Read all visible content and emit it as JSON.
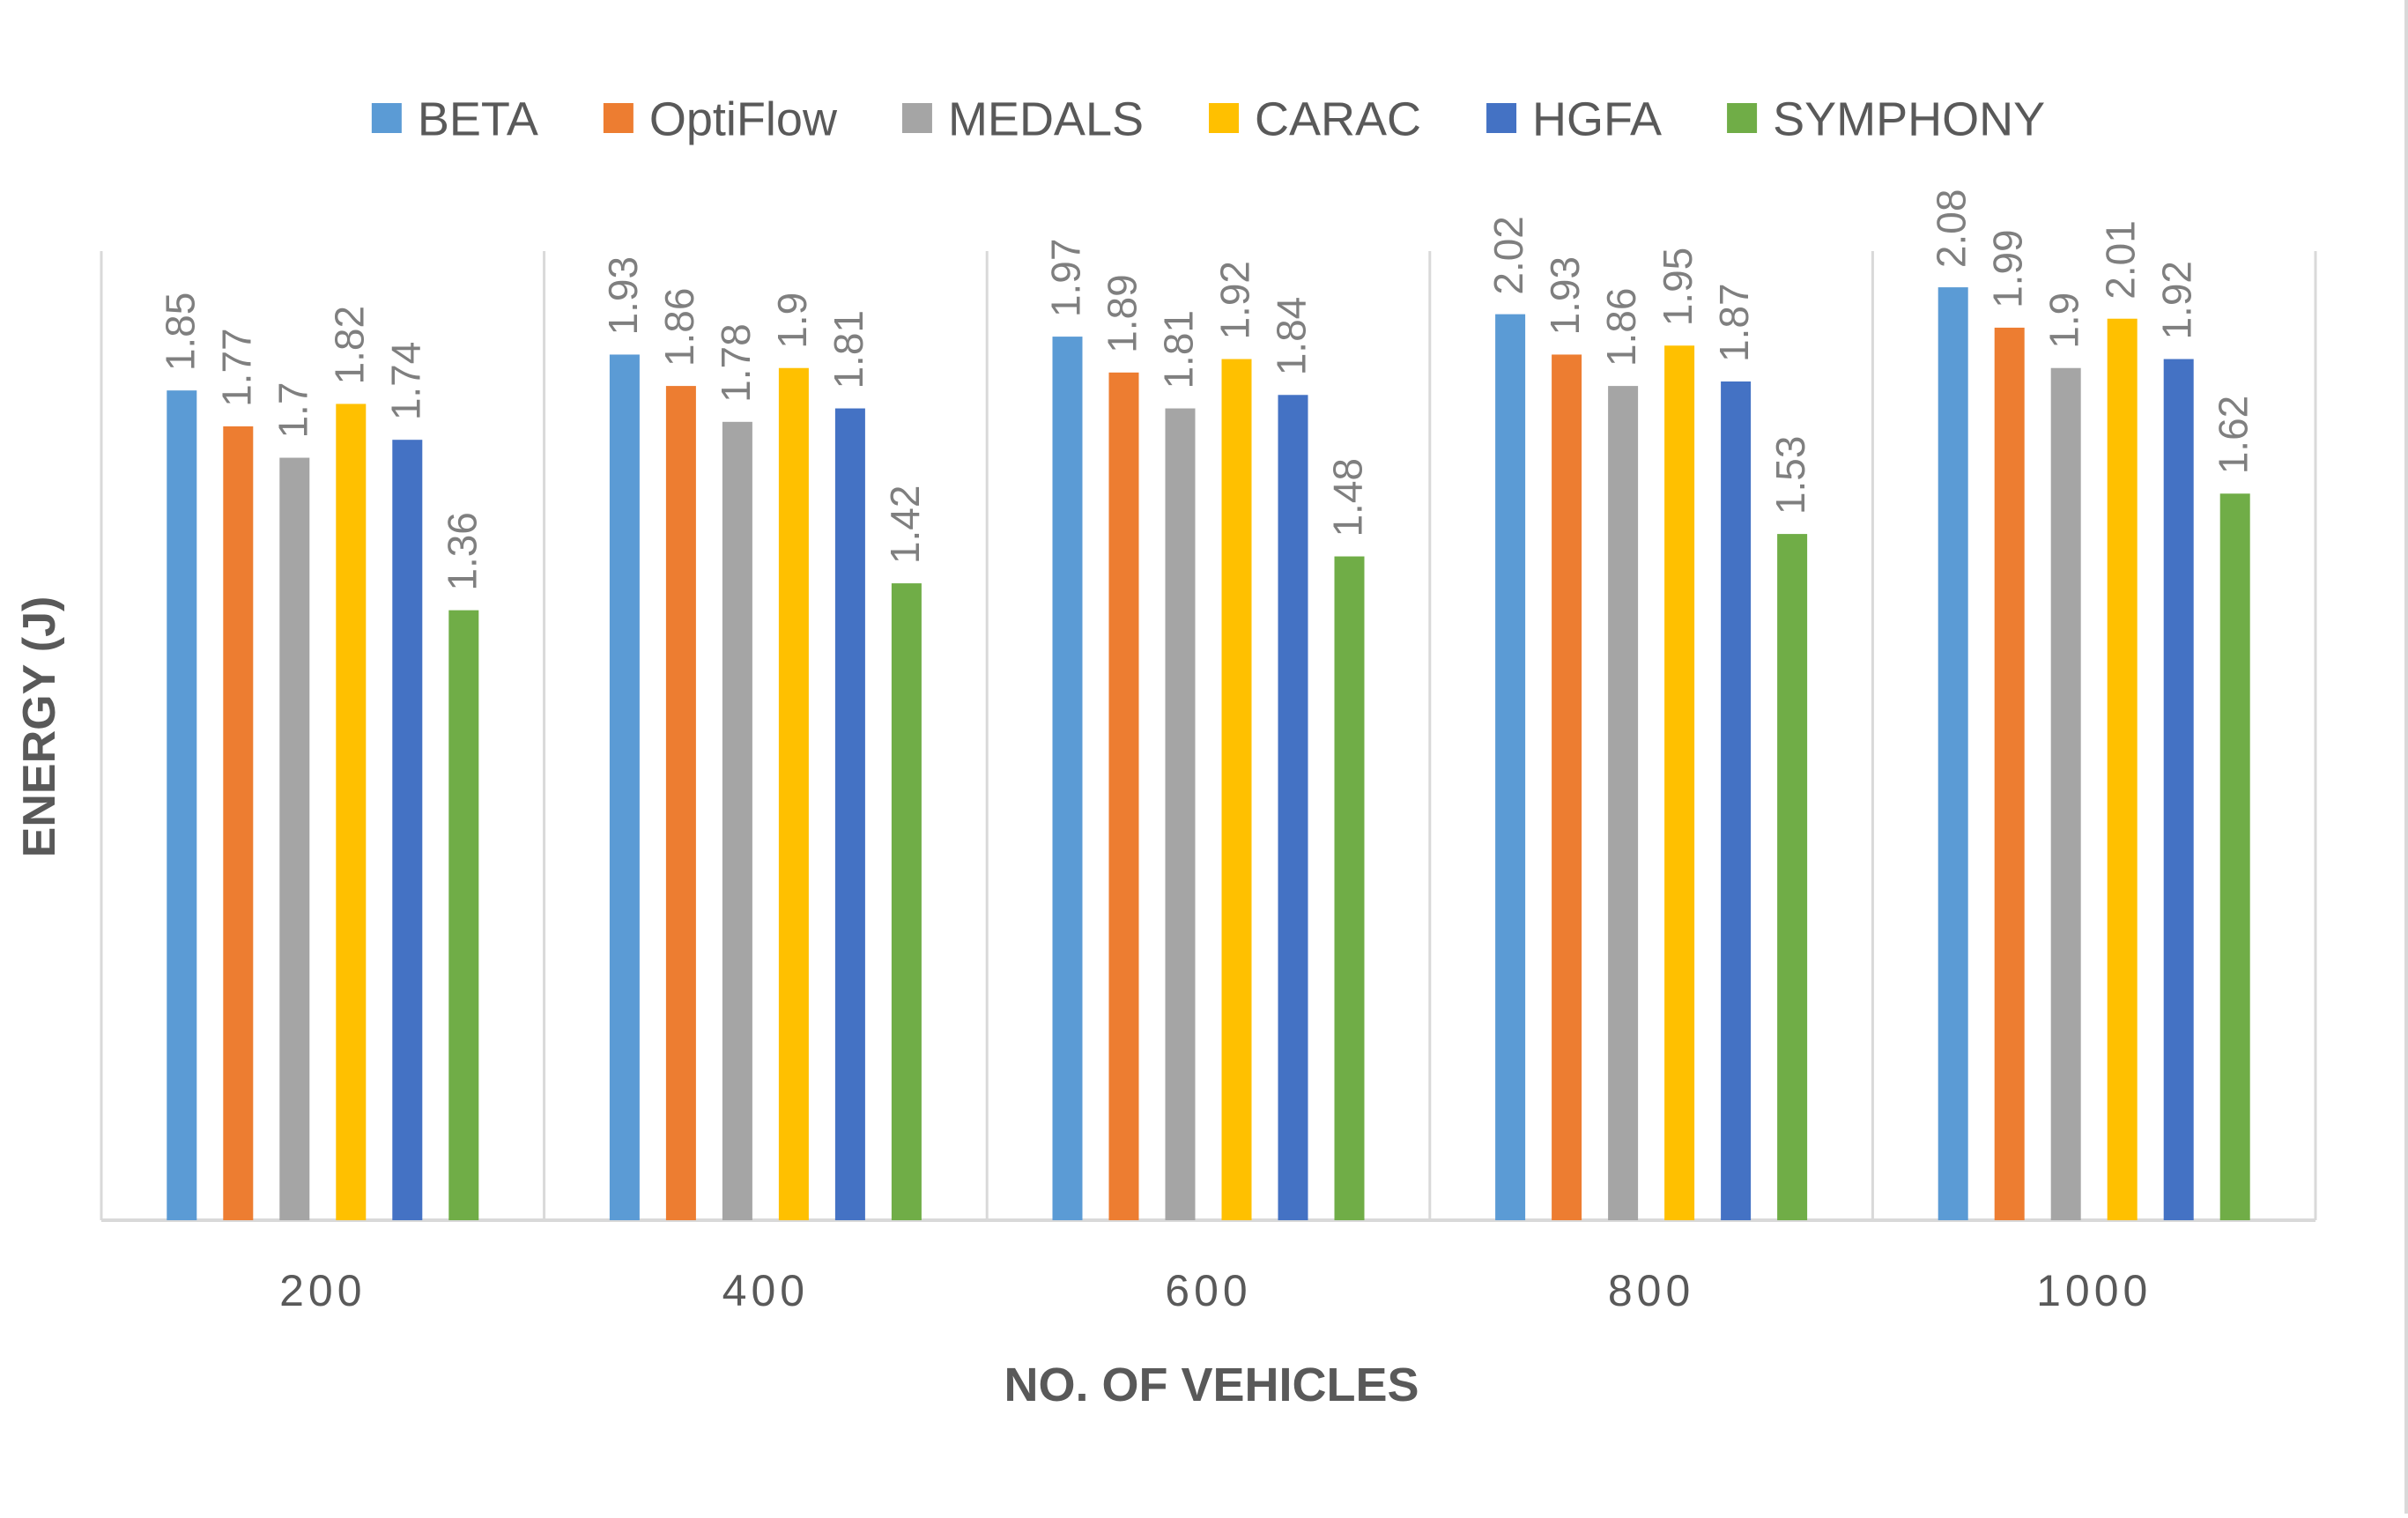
{
  "chart_data": {
    "type": "bar",
    "title": "",
    "xlabel": "NO. OF VEHICLES",
    "ylabel": "ENERGY (J)",
    "ylim": [
      0,
      2.2
    ],
    "grid": false,
    "legend_position": "top-center",
    "categories": [
      "200",
      "400",
      "600",
      "800",
      "1000"
    ],
    "series": [
      {
        "name": "BETA",
        "color": "#5B9BD5",
        "values": [
          1.85,
          1.93,
          1.97,
          2.02,
          2.08
        ]
      },
      {
        "name": "OptiFlow",
        "color": "#ED7D31",
        "values": [
          1.77,
          1.86,
          1.89,
          1.93,
          1.99
        ]
      },
      {
        "name": "MEDALS",
        "color": "#A5A5A5",
        "values": [
          1.7,
          1.78,
          1.81,
          1.86,
          1.9
        ]
      },
      {
        "name": "CARAC",
        "color": "#FFC000",
        "values": [
          1.82,
          1.9,
          1.92,
          1.95,
          2.01
        ]
      },
      {
        "name": "HGFA",
        "color": "#4472C4",
        "values": [
          1.74,
          1.81,
          1.84,
          1.87,
          1.92
        ]
      },
      {
        "name": "SYMPHONY",
        "color": "#70AD47",
        "values": [
          1.36,
          1.42,
          1.48,
          1.53,
          1.62
        ]
      }
    ],
    "colors": {
      "axis": "#d9d9d9",
      "tick_label": "#595959",
      "data_label": "#7f7f7f",
      "axis_title": "#595959",
      "legend_text": "#595959"
    }
  }
}
